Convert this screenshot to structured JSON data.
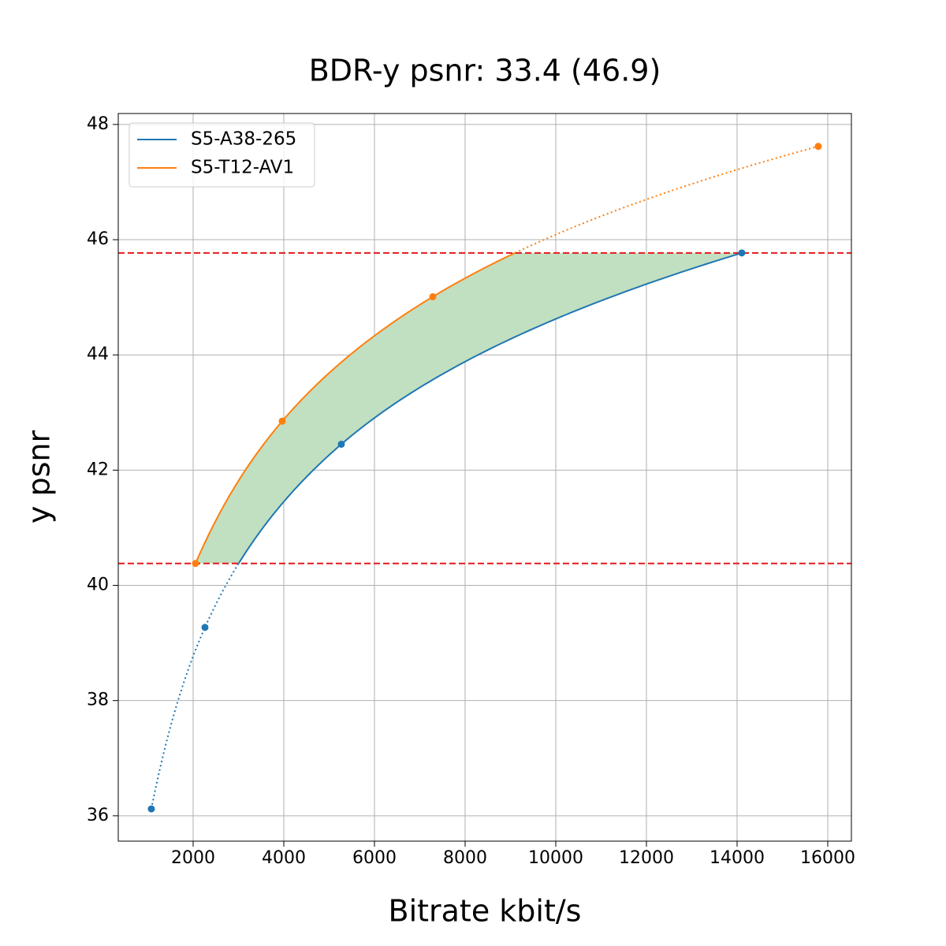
{
  "chart_data": {
    "type": "line",
    "title": "BDR-y psnr: 33.4 (46.9)",
    "xlabel": "Bitrate kbit/s",
    "ylabel": "y psnr",
    "series": [
      {
        "name": "S5-A38-265",
        "color": "#1f77b4",
        "x": [
          1078,
          2261,
          5270,
          14104
        ],
        "values": [
          36.12,
          39.27,
          42.45,
          45.77
        ]
      },
      {
        "name": "S5-T12-AV1",
        "color": "#ff7f0e",
        "x": [
          2052,
          3965,
          7287,
          15791
        ],
        "values": [
          40.38,
          42.85,
          45.01,
          47.62
        ]
      }
    ],
    "xlim": [
      348,
      16522
    ],
    "ylim": [
      35.56,
      48.19
    ],
    "xticks": [
      2000,
      4000,
      6000,
      8000,
      10000,
      12000,
      14000,
      16000
    ],
    "yticks": [
      36,
      38,
      40,
      42,
      44,
      46,
      48
    ],
    "grid": true,
    "legend": "upper left",
    "fill_color": "#c1dfc1",
    "limit_color": "#e41a1c"
  }
}
